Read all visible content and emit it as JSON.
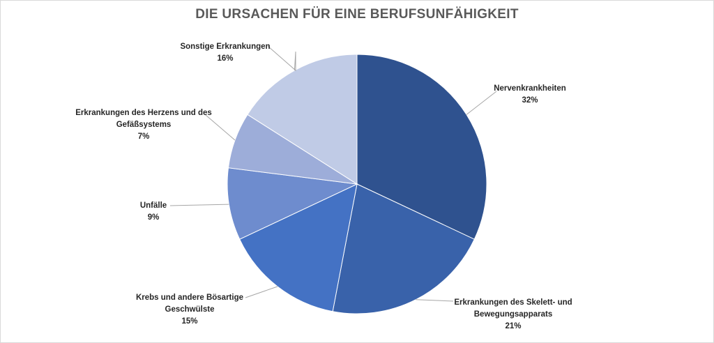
{
  "chart_data": {
    "type": "pie",
    "title": "DIE URSACHEN FÜR EINE BERUFSUNFÄHIGKEIT",
    "slices": [
      {
        "label_lines": [
          "Nervenkrankheiten"
        ],
        "percent_label": "32%",
        "value": 32,
        "color": "#2f528f"
      },
      {
        "label_lines": [
          "Erkrankungen des Skelett- und",
          "Bewegungsapparats"
        ],
        "percent_label": "21%",
        "value": 21,
        "color": "#3962aa"
      },
      {
        "label_lines": [
          "Krebs und andere Bösartige",
          "Geschwülste"
        ],
        "percent_label": "15%",
        "value": 15,
        "color": "#4472c4"
      },
      {
        "label_lines": [
          "Unfälle"
        ],
        "percent_label": "9%",
        "value": 9,
        "color": "#6e8cce"
      },
      {
        "label_lines": [
          "Erkrankungen des Herzens und des",
          "Gefäßsystems"
        ],
        "percent_label": "7%",
        "value": 7,
        "color": "#9dadd9"
      },
      {
        "label_lines": [
          "Sonstige Erkrankungen"
        ],
        "percent_label": "16%",
        "value": 16,
        "color": "#c0cbe6"
      }
    ],
    "legend": "none",
    "data_labels": "outside with leader lines"
  }
}
